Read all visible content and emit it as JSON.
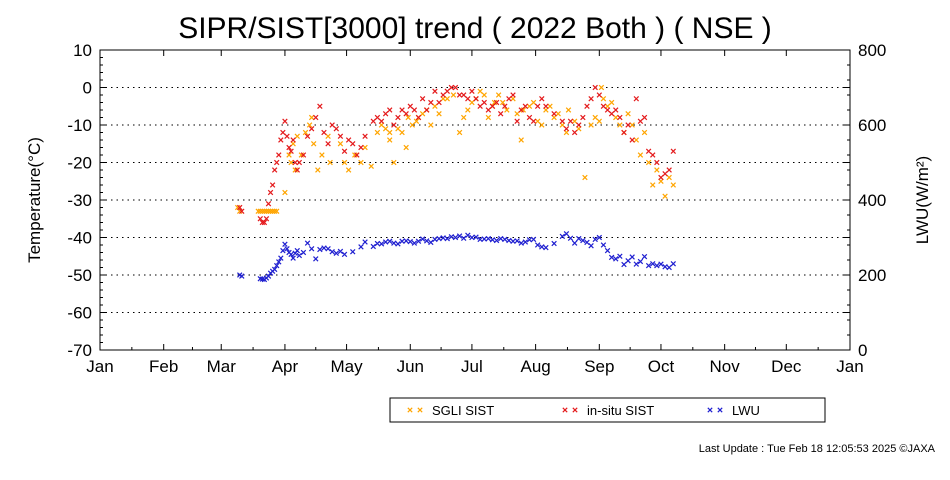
{
  "footer": "Last Update : Tue Feb 18 12:05:53 2025  ©JAXA",
  "chart_data": {
    "type": "scatter",
    "title": "SIPR/SIST[3000] trend ( 2022 Both ) ( NSE )",
    "ylabel": "Temperature(°C)",
    "y2label": "LWU(W/m²)",
    "ylim": [
      -70,
      10
    ],
    "y2lim": [
      0,
      800
    ],
    "yticks": [
      "10",
      "0",
      "-10",
      "-20",
      "-30",
      "-40",
      "-50",
      "-60",
      "-70"
    ],
    "y2ticks": [
      "800",
      "600",
      "400",
      "200",
      "0"
    ],
    "x_tick_labels": [
      "Jan",
      "Feb",
      "Mar",
      "Apr",
      "May",
      "Jun",
      "Jul",
      "Aug",
      "Sep",
      "Oct",
      "Nov",
      "Dec",
      "Jan"
    ],
    "xlim_day_of_year": [
      1,
      366
    ],
    "grid": "dotted horizontal",
    "legend_position": "bottom",
    "series": [
      {
        "name": "SGLI SIST",
        "color": "#ffa500",
        "axis": "left",
        "x_day_of_year": [
          68,
          69,
          78,
          79,
          80,
          81,
          82,
          83,
          84,
          85,
          86,
          87,
          91,
          93,
          94,
          95,
          96,
          97,
          99,
          101,
          103,
          104,
          105,
          107,
          109,
          112,
          113,
          118,
          120,
          122,
          125,
          128,
          130,
          133,
          136,
          138,
          140,
          142,
          142,
          144,
          146,
          148,
          150,
          151,
          153,
          155,
          156,
          158,
          160,
          162,
          164,
          166,
          168,
          170,
          173,
          176,
          178,
          180,
          182,
          184,
          186,
          188,
          190,
          192,
          193,
          195,
          197,
          199,
          202,
          204,
          206,
          207,
          210,
          212,
          214,
          216,
          218,
          220,
          222,
          224,
          226,
          228,
          229,
          232,
          234,
          237,
          240,
          242,
          244,
          245,
          246,
          248,
          250,
          252,
          254,
          256,
          258,
          260,
          262,
          264,
          266,
          268,
          270,
          272,
          274,
          276,
          278,
          280
        ],
        "y": [
          -32,
          -33,
          -33,
          -33,
          -33,
          -33,
          -33,
          -33,
          -33,
          -33,
          -33,
          -33,
          -28,
          -18,
          -20,
          -15,
          -22,
          -13,
          -18,
          -12,
          -10,
          -8,
          -15,
          -22,
          -18,
          -13,
          -20,
          -15,
          -20,
          -22,
          -18,
          -20,
          -16,
          -21,
          -12,
          -10,
          -11,
          -12,
          -14,
          -20,
          -11,
          -12,
          -16,
          -8,
          -10,
          -9,
          -8,
          -7,
          -6,
          -10,
          -5,
          -7,
          -3,
          -3,
          -2,
          -12,
          -8,
          -6,
          -4,
          -3,
          -1,
          -2,
          -8,
          -5,
          -4,
          -2,
          -4,
          -6,
          -3,
          -7,
          -14,
          -6,
          -5,
          -4,
          -9,
          -10,
          -6,
          -5,
          -8,
          -7,
          -10,
          -12,
          -6,
          -9,
          -11,
          -24,
          -10,
          -8,
          -9,
          0,
          -3,
          -5,
          -4,
          -8,
          -10,
          -12,
          -7,
          -10,
          -14,
          -18,
          -12,
          -20,
          -26,
          -22,
          -25,
          -29,
          -24,
          -26
        ]
      },
      {
        "name": "in-situ SIST",
        "color": "#e41a1c",
        "axis": "left",
        "x_day_of_year": [
          69,
          70,
          79,
          80,
          81,
          82,
          83,
          84,
          85,
          86,
          87,
          88,
          89,
          90,
          91,
          92,
          93,
          94,
          95,
          96,
          97,
          98,
          100,
          102,
          104,
          106,
          108,
          110,
          112,
          114,
          116,
          118,
          120,
          122,
          124,
          126,
          128,
          130,
          134,
          136,
          138,
          140,
          142,
          144,
          146,
          148,
          150,
          152,
          154,
          156,
          158,
          160,
          162,
          164,
          166,
          168,
          170,
          172,
          174,
          176,
          178,
          180,
          182,
          184,
          186,
          188,
          190,
          192,
          194,
          196,
          198,
          200,
          202,
          204,
          206,
          208,
          210,
          212,
          214,
          216,
          218,
          222,
          226,
          228,
          230,
          232,
          234,
          236,
          238,
          240,
          242,
          244,
          246,
          248,
          250,
          252,
          254,
          256,
          258,
          260,
          262,
          264,
          266,
          268,
          270,
          272,
          274,
          276,
          278,
          280
        ],
        "y": [
          -32,
          -33,
          -35,
          -36,
          -36,
          -35,
          -31,
          -28,
          -26,
          -22,
          -20,
          -18,
          -14,
          -12,
          -9,
          -13,
          -16,
          -17,
          -14,
          -20,
          -22,
          -20,
          -18,
          -13,
          -11,
          -8,
          -5,
          -12,
          -15,
          -10,
          -11,
          -13,
          -17,
          -14,
          -15,
          -18,
          -16,
          -13,
          -9,
          -8,
          -9,
          -7,
          -6,
          -10,
          -8,
          -6,
          -7,
          -5,
          -6,
          -8,
          -3,
          -6,
          -4,
          -1,
          -4,
          -2,
          -1,
          0,
          0,
          -2,
          -2,
          -3,
          -1,
          -3,
          -5,
          -4,
          -6,
          -5,
          -4,
          -7,
          -5,
          -3,
          -2,
          -9,
          -6,
          -5,
          -8,
          -9,
          -5,
          -3,
          -5,
          -7,
          -9,
          -11,
          -9,
          -12,
          -10,
          -8,
          -5,
          -3,
          0,
          -2,
          -5,
          -6,
          -7,
          -6,
          -8,
          -12,
          -10,
          -14,
          -3,
          -9,
          -8,
          -17,
          -18,
          -20,
          -24,
          -23,
          -22,
          -17
        ]
      },
      {
        "name": "LWU",
        "color": "#1f1fd0",
        "axis": "right",
        "x_day_of_year": [
          69,
          70,
          79,
          80,
          81,
          82,
          83,
          84,
          85,
          86,
          87,
          88,
          89,
          90,
          91,
          92,
          93,
          94,
          95,
          96,
          97,
          98,
          100,
          102,
          104,
          106,
          108,
          110,
          112,
          114,
          116,
          118,
          120,
          124,
          128,
          130,
          134,
          136,
          138,
          140,
          142,
          144,
          146,
          148,
          150,
          152,
          154,
          156,
          158,
          160,
          162,
          164,
          166,
          168,
          170,
          172,
          174,
          176,
          178,
          180,
          182,
          184,
          186,
          188,
          190,
          192,
          194,
          196,
          198,
          200,
          202,
          204,
          206,
          208,
          210,
          212,
          214,
          216,
          218,
          222,
          226,
          228,
          230,
          232,
          234,
          236,
          238,
          240,
          242,
          244,
          246,
          248,
          250,
          252,
          254,
          256,
          258,
          260,
          262,
          264,
          266,
          268,
          270,
          272,
          274,
          276,
          278,
          280
        ],
        "y": [
          200,
          197,
          190,
          189,
          188,
          192,
          197,
          205,
          210,
          215,
          225,
          235,
          245,
          265,
          282,
          270,
          260,
          255,
          245,
          258,
          265,
          252,
          260,
          285,
          270,
          243,
          268,
          272,
          270,
          262,
          258,
          263,
          255,
          262,
          275,
          288,
          276,
          284,
          283,
          288,
          290,
          285,
          283,
          290,
          291,
          289,
          285,
          290,
          296,
          291,
          287,
          295,
          297,
          299,
          297,
          302,
          300,
          304,
          298,
          306,
          300,
          301,
          295,
          296,
          297,
          294,
          292,
          297,
          295,
          292,
          290,
          291,
          285,
          288,
          294,
          295,
          280,
          275,
          273,
          284,
          303,
          310,
          298,
          285,
          297,
          292,
          287,
          278,
          295,
          300,
          280,
          265,
          247,
          243,
          250,
          228,
          238,
          248,
          229,
          236,
          249,
          225,
          230,
          225,
          229,
          222,
          220,
          230
        ]
      }
    ],
    "legend": [
      {
        "label": "SGLI SIST",
        "color": "#ffa500"
      },
      {
        "label": "in-situ SIST",
        "color": "#e41a1c"
      },
      {
        "label": "LWU",
        "color": "#1f1fd0"
      }
    ]
  }
}
